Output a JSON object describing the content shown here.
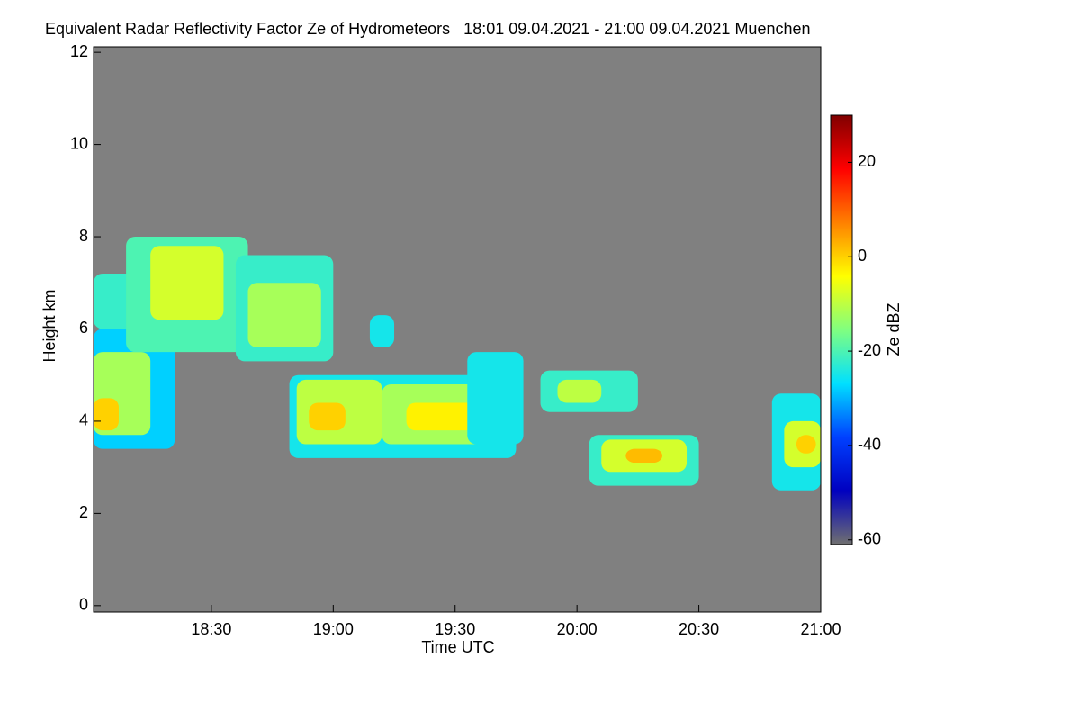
{
  "chart_data": {
    "type": "heatmap",
    "title": "Equivalent Radar Reflectivity Factor Ze of Hydrometeors   18:01 09.04.2021 - 21:00 09.04.2021 Muenchen",
    "x_label": "Time UTC",
    "y_label": "Height km",
    "colorbar_label": "Ze dBZ",
    "xlim": [
      18.0167,
      21.0
    ],
    "xticks": [
      {
        "value": 18.5,
        "label": "18:30"
      },
      {
        "value": 19.0,
        "label": "19:00"
      },
      {
        "value": 19.5,
        "label": "19:30"
      },
      {
        "value": 20.0,
        "label": "20:00"
      },
      {
        "value": 20.5,
        "label": "20:30"
      },
      {
        "value": 21.0,
        "label": "21:00"
      }
    ],
    "ylim": [
      -0.14,
      12.12
    ],
    "yticks": [
      0,
      2,
      4,
      6,
      8,
      10,
      12
    ],
    "clim": [
      -61,
      30
    ],
    "cticks": [
      -60,
      -40,
      -20,
      0,
      20
    ],
    "background": "#808080",
    "colorscale": [
      "#707070",
      "#0000c0",
      "#0040ff",
      "#00e0ff",
      "#80ff80",
      "#ffff00",
      "#ff8000",
      "#ff0000",
      "#800000"
    ],
    "echoes": [
      {
        "x0": 18.0167,
        "x1": 18.35,
        "y0": 3.4,
        "y1": 6.0,
        "value": -28
      },
      {
        "x0": 18.0167,
        "x1": 18.25,
        "y0": 3.7,
        "y1": 5.5,
        "value": -12
      },
      {
        "x0": 18.0167,
        "x1": 18.12,
        "y0": 3.8,
        "y1": 4.5,
        "value": 0
      },
      {
        "x0": 18.0167,
        "x1": 18.3,
        "y0": 6.0,
        "y1": 7.2,
        "value": -22
      },
      {
        "x0": 18.15,
        "x1": 18.65,
        "y0": 5.5,
        "y1": 8.0,
        "value": -20
      },
      {
        "x0": 18.25,
        "x1": 18.55,
        "y0": 6.2,
        "y1": 7.8,
        "value": -8
      },
      {
        "x0": 18.6,
        "x1": 19.0,
        "y0": 5.3,
        "y1": 7.6,
        "value": -22
      },
      {
        "x0": 18.65,
        "x1": 18.95,
        "y0": 5.6,
        "y1": 7.0,
        "value": -12
      },
      {
        "x0": 19.15,
        "x1": 19.25,
        "y0": 5.6,
        "y1": 6.3,
        "value": -25
      },
      {
        "x0": 18.82,
        "x1": 19.75,
        "y0": 3.2,
        "y1": 5.0,
        "value": -25
      },
      {
        "x0": 18.85,
        "x1": 19.2,
        "y0": 3.5,
        "y1": 4.9,
        "value": -10
      },
      {
        "x0": 18.9,
        "x1": 19.05,
        "y0": 3.8,
        "y1": 4.4,
        "value": 0
      },
      {
        "x0": 19.2,
        "x1": 19.7,
        "y0": 3.5,
        "y1": 4.8,
        "value": -12
      },
      {
        "x0": 19.3,
        "x1": 19.6,
        "y0": 3.8,
        "y1": 4.4,
        "value": -3
      },
      {
        "x0": 19.55,
        "x1": 19.78,
        "y0": 3.5,
        "y1": 5.5,
        "value": -25
      },
      {
        "x0": 19.85,
        "x1": 20.25,
        "y0": 4.2,
        "y1": 5.1,
        "value": -22
      },
      {
        "x0": 19.92,
        "x1": 20.1,
        "y0": 4.4,
        "y1": 4.9,
        "value": -10
      },
      {
        "x0": 20.05,
        "x1": 20.5,
        "y0": 2.6,
        "y1": 3.7,
        "value": -22
      },
      {
        "x0": 20.1,
        "x1": 20.45,
        "y0": 2.9,
        "y1": 3.6,
        "value": -8
      },
      {
        "x0": 20.2,
        "x1": 20.35,
        "y0": 3.1,
        "y1": 3.4,
        "value": 2
      },
      {
        "x0": 20.8,
        "x1": 21.0,
        "y0": 2.5,
        "y1": 4.6,
        "value": -25
      },
      {
        "x0": 20.85,
        "x1": 21.0,
        "y0": 3.0,
        "y1": 4.0,
        "value": -8
      },
      {
        "x0": 20.9,
        "x1": 20.98,
        "y0": 3.3,
        "y1": 3.7,
        "value": 0
      }
    ]
  }
}
